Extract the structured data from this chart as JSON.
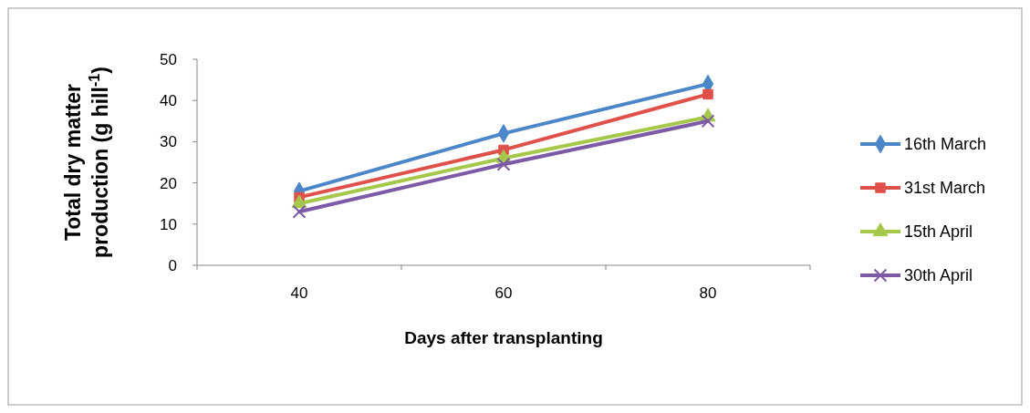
{
  "chart_data": {
    "type": "line",
    "xlabel": "Days after transplanting",
    "ylabel": "Total dry matter production (g hill$^{-1}$)",
    "categories": [
      "40",
      "60",
      "80"
    ],
    "ylim": [
      0,
      50
    ],
    "yticks": [
      0,
      10,
      20,
      30,
      40,
      50
    ],
    "grid": false,
    "legend": "right",
    "series": [
      {
        "name": "16th March",
        "color": "#4a86c8",
        "marker": "diamond",
        "values": [
          18,
          32,
          44
        ]
      },
      {
        "name": "31st March",
        "color": "#e0504a",
        "marker": "square",
        "values": [
          16.5,
          28,
          41.5
        ]
      },
      {
        "name": "15th April",
        "color": "#a5c84a",
        "marker": "triangle",
        "values": [
          15,
          26,
          36
        ]
      },
      {
        "name": "30th April",
        "color": "#7d5aa6",
        "marker": "cross",
        "values": [
          13,
          24.5,
          35
        ]
      }
    ]
  }
}
